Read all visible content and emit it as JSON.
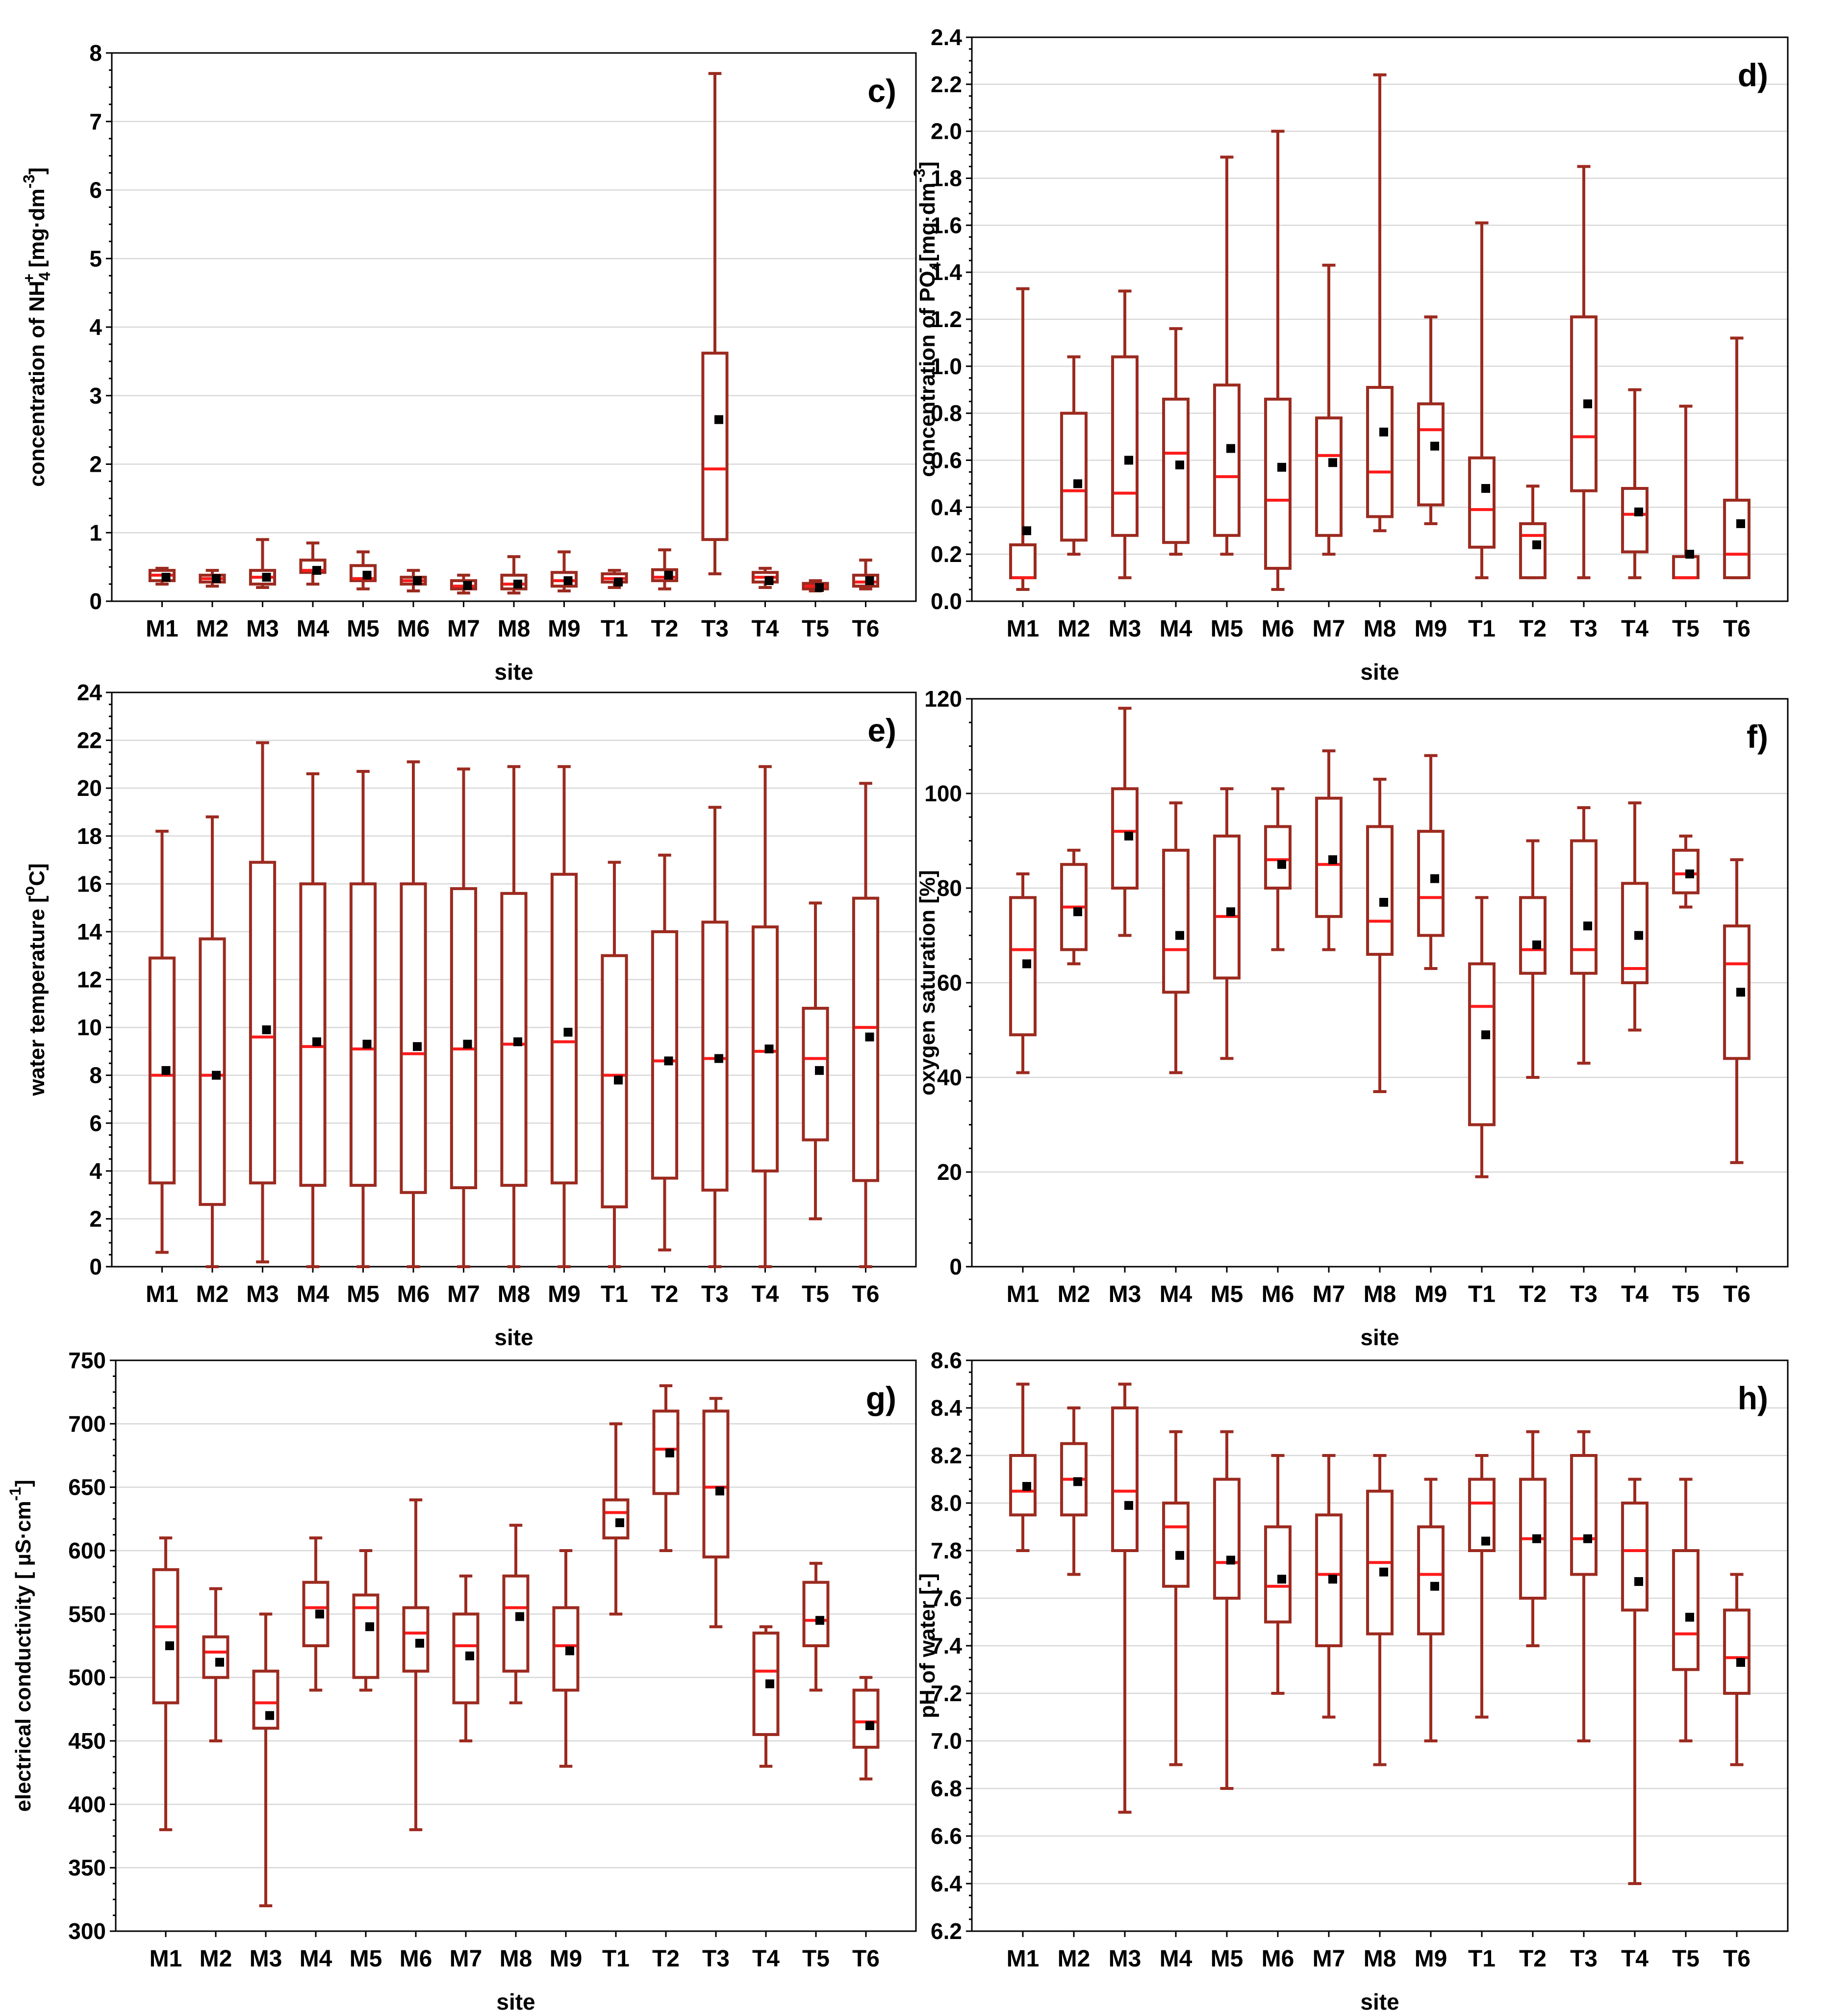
{
  "colors": {
    "box": "#9c2a1f",
    "median": "#ff1a1a",
    "mean": "#000000",
    "grid": "#d8d8d8"
  },
  "chart_data": [
    {
      "type": "boxplot",
      "panel_label": "c)",
      "ylabel_parts": [
        "concentration of NH",
        "4",
        "+",
        " [mg·dm",
        "-3",
        "]"
      ],
      "xlabel": "site",
      "ylim": [
        0,
        8
      ],
      "yticks": [
        0,
        1,
        2,
        3,
        4,
        5,
        6,
        7,
        8
      ],
      "tick_labels": [
        "0",
        "1",
        "2",
        "3",
        "4",
        "5",
        "6",
        "7",
        "8"
      ],
      "grid": true,
      "categories": [
        "M1",
        "M2",
        "M3",
        "M4",
        "M5",
        "M6",
        "M7",
        "M8",
        "M9",
        "T1",
        "T2",
        "T3",
        "T4",
        "T5",
        "T6"
      ],
      "min": [
        0.25,
        0.22,
        0.2,
        0.25,
        0.18,
        0.15,
        0.12,
        0.12,
        0.15,
        0.2,
        0.18,
        0.4,
        0.2,
        0.15,
        0.18
      ],
      "q1": [
        0.3,
        0.28,
        0.25,
        0.42,
        0.3,
        0.25,
        0.18,
        0.18,
        0.22,
        0.28,
        0.3,
        0.9,
        0.28,
        0.18,
        0.22
      ],
      "median": [
        0.38,
        0.33,
        0.35,
        0.45,
        0.33,
        0.3,
        0.22,
        0.25,
        0.3,
        0.33,
        0.35,
        1.93,
        0.35,
        0.22,
        0.28
      ],
      "q3": [
        0.45,
        0.38,
        0.45,
        0.6,
        0.52,
        0.35,
        0.3,
        0.38,
        0.42,
        0.4,
        0.46,
        3.62,
        0.42,
        0.26,
        0.38
      ],
      "max": [
        0.48,
        0.45,
        0.9,
        0.85,
        0.72,
        0.45,
        0.38,
        0.65,
        0.72,
        0.45,
        0.75,
        7.7,
        0.48,
        0.3,
        0.6
      ],
      "mean": [
        0.35,
        0.33,
        0.35,
        0.45,
        0.38,
        0.3,
        0.23,
        0.25,
        0.3,
        0.28,
        0.38,
        2.65,
        0.3,
        0.2,
        0.3
      ]
    },
    {
      "type": "boxplot",
      "panel_label": "d)",
      "ylabel_parts": [
        "concentration of PO",
        "4",
        "-",
        " [mg·dm",
        "-3",
        "]"
      ],
      "xlabel": "site",
      "ylim": [
        0,
        2.4
      ],
      "yticks": [
        0,
        0.2,
        0.4,
        0.6,
        0.8,
        1.0,
        1.2,
        1.4,
        1.6,
        1.8,
        2.0,
        2.2,
        2.4
      ],
      "tick_labels": [
        "0.0",
        "0.2",
        "0.4",
        "0.6",
        "0.8",
        "1.0",
        "1.2",
        "1.4",
        "1.6",
        "1.8",
        "2.0",
        "2.2",
        "2.4"
      ],
      "grid": true,
      "categories": [
        "M1",
        "M2",
        "M3",
        "M4",
        "M5",
        "M6",
        "M7",
        "M8",
        "M9",
        "T1",
        "T2",
        "T3",
        "T4",
        "T5",
        "T6"
      ],
      "min": [
        0.05,
        0.2,
        0.1,
        0.2,
        0.2,
        0.05,
        0.2,
        0.3,
        0.33,
        0.1,
        0.1,
        0.1,
        0.1,
        0.1,
        0.1
      ],
      "q1": [
        0.1,
        0.26,
        0.28,
        0.25,
        0.28,
        0.14,
        0.28,
        0.36,
        0.41,
        0.23,
        0.1,
        0.47,
        0.21,
        0.1,
        0.1
      ],
      "median": [
        0.1,
        0.47,
        0.46,
        0.63,
        0.53,
        0.43,
        0.62,
        0.55,
        0.73,
        0.39,
        0.28,
        0.7,
        0.37,
        0.1,
        0.2
      ],
      "q3": [
        0.24,
        0.8,
        1.04,
        0.86,
        0.92,
        0.86,
        0.78,
        0.91,
        0.84,
        0.61,
        0.33,
        1.21,
        0.48,
        0.19,
        0.43
      ],
      "max": [
        1.33,
        1.04,
        1.32,
        1.16,
        1.89,
        2.0,
        1.43,
        2.24,
        1.21,
        1.61,
        0.49,
        1.85,
        0.9,
        0.83,
        1.12
      ],
      "mean": [
        0.3,
        0.5,
        0.6,
        0.58,
        0.65,
        0.57,
        0.59,
        0.72,
        0.66,
        0.48,
        0.24,
        0.84,
        0.38,
        0.2,
        0.33
      ]
    },
    {
      "type": "boxplot",
      "panel_label": "e)",
      "ylabel_parts": [
        "water temperature [",
        "o",
        "C]"
      ],
      "xlabel": "site",
      "ylim": [
        0,
        24
      ],
      "yticks": [
        0,
        2,
        4,
        6,
        8,
        10,
        12,
        14,
        16,
        18,
        20,
        22,
        24
      ],
      "tick_labels": [
        "0",
        "2",
        "4",
        "6",
        "8",
        "10",
        "12",
        "14",
        "16",
        "18",
        "20",
        "22",
        "24"
      ],
      "grid": true,
      "categories": [
        "M1",
        "M2",
        "M3",
        "M4",
        "M5",
        "M6",
        "M7",
        "M8",
        "M9",
        "T1",
        "T2",
        "T3",
        "T4",
        "T5",
        "T6"
      ],
      "min": [
        0.6,
        0,
        0.2,
        0,
        0,
        0,
        0,
        0,
        0,
        0,
        0.7,
        0,
        0,
        2,
        0
      ],
      "q1": [
        3.5,
        2.6,
        3.5,
        3.4,
        3.4,
        3.1,
        3.3,
        3.4,
        3.5,
        2.5,
        3.7,
        3.2,
        4.0,
        5.3,
        3.6
      ],
      "median": [
        8.0,
        8.0,
        9.6,
        9.2,
        9.1,
        8.9,
        9.1,
        9.3,
        9.4,
        8.0,
        8.6,
        8.7,
        9.0,
        8.7,
        10.0
      ],
      "q3": [
        12.9,
        13.7,
        16.9,
        16.0,
        16.0,
        16.0,
        15.8,
        15.6,
        16.4,
        13.0,
        14.0,
        14.4,
        14.2,
        10.8,
        15.4
      ],
      "max": [
        18.2,
        18.8,
        21.9,
        20.6,
        20.7,
        21.1,
        20.8,
        20.9,
        20.9,
        16.9,
        17.2,
        19.2,
        20.9,
        15.2,
        20.2
      ],
      "mean": [
        8.2,
        8.0,
        9.9,
        9.4,
        9.3,
        9.2,
        9.3,
        9.4,
        9.8,
        7.8,
        8.6,
        8.7,
        9.1,
        8.2,
        9.6
      ]
    },
    {
      "type": "boxplot",
      "panel_label": "f)",
      "ylabel_parts": [
        "oxygen saturation [%]"
      ],
      "xlabel": "site",
      "ylim": [
        0,
        120
      ],
      "yticks": [
        0,
        20,
        40,
        60,
        80,
        100,
        120
      ],
      "tick_labels": [
        "0",
        "20",
        "40",
        "60",
        "80",
        "100",
        "120"
      ],
      "grid": true,
      "categories": [
        "M1",
        "M2",
        "M3",
        "M4",
        "M5",
        "M6",
        "M7",
        "M8",
        "M9",
        "T1",
        "T2",
        "T3",
        "T4",
        "T5",
        "T6"
      ],
      "min": [
        41,
        64,
        70,
        41,
        44,
        67,
        67,
        37,
        63,
        19,
        40,
        43,
        50,
        76,
        22
      ],
      "q1": [
        49,
        67,
        80,
        58,
        61,
        80,
        74,
        66,
        70,
        30,
        62,
        62,
        60,
        79,
        44
      ],
      "median": [
        67,
        76,
        92,
        67,
        74,
        86,
        85,
        73,
        78,
        55,
        67,
        67,
        63,
        83,
        64
      ],
      "q3": [
        78,
        85,
        101,
        88,
        91,
        93,
        99,
        93,
        92,
        64,
        78,
        90,
        81,
        88,
        72
      ],
      "max": [
        83,
        88,
        118,
        98,
        101,
        101,
        109,
        103,
        108,
        78,
        90,
        97,
        98,
        91,
        86
      ],
      "mean": [
        64,
        75,
        91,
        70,
        75,
        85,
        86,
        77,
        82,
        49,
        68,
        72,
        70,
        83,
        58
      ]
    },
    {
      "type": "boxplot",
      "panel_label": "g)",
      "ylabel_parts": [
        "electrical conductivity [ µS·cm",
        "-1",
        "]"
      ],
      "xlabel": "site",
      "ylim": [
        300,
        750
      ],
      "yticks": [
        300,
        350,
        400,
        450,
        500,
        550,
        600,
        650,
        700,
        750
      ],
      "tick_labels": [
        "300",
        "350",
        "400",
        "450",
        "500",
        "550",
        "600",
        "650",
        "700",
        "750"
      ],
      "grid": true,
      "categories": [
        "M1",
        "M2",
        "M3",
        "M4",
        "M5",
        "M6",
        "M7",
        "M8",
        "M9",
        "T1",
        "T2",
        "T3",
        "T4",
        "T5",
        "T6"
      ],
      "min": [
        380,
        450,
        320,
        490,
        490,
        380,
        450,
        480,
        430,
        550,
        600,
        540,
        430,
        490,
        420
      ],
      "q1": [
        480,
        500,
        460,
        525,
        500,
        505,
        480,
        505,
        490,
        610,
        645,
        595,
        455,
        525,
        445
      ],
      "median": [
        540,
        520,
        480,
        555,
        555,
        535,
        525,
        555,
        525,
        630,
        680,
        650,
        505,
        545,
        465
      ],
      "q3": [
        585,
        532,
        505,
        575,
        565,
        555,
        550,
        580,
        555,
        640,
        710,
        710,
        535,
        575,
        490
      ],
      "max": [
        610,
        570,
        550,
        610,
        600,
        640,
        580,
        620,
        600,
        700,
        730,
        720,
        540,
        590,
        500
      ],
      "mean": [
        525,
        512,
        470,
        550,
        540,
        527,
        517,
        548,
        521,
        622,
        677,
        647,
        495,
        545,
        462
      ]
    },
    {
      "type": "boxplot",
      "panel_label": "h)",
      "ylabel_parts": [
        "pH of water [-]"
      ],
      "xlabel": "site",
      "ylim": [
        6.2,
        8.6
      ],
      "yticks": [
        6.2,
        6.4,
        6.6,
        6.8,
        7.0,
        7.2,
        7.4,
        7.6,
        7.8,
        8.0,
        8.2,
        8.4,
        8.6
      ],
      "tick_labels": [
        "6.2",
        "6.4",
        "6.6",
        "6.8",
        "7.0",
        "7.2",
        "7.4",
        "7.6",
        "7.8",
        "8.0",
        "8.2",
        "8.4",
        "8.6"
      ],
      "grid": true,
      "categories": [
        "M1",
        "M2",
        "M3",
        "M4",
        "M5",
        "M6",
        "M7",
        "M8",
        "M9",
        "T1",
        "T2",
        "T3",
        "T4",
        "T5",
        "T6"
      ],
      "min": [
        7.8,
        7.7,
        6.7,
        6.9,
        6.8,
        7.2,
        7.1,
        6.9,
        7.0,
        7.1,
        7.4,
        7.0,
        6.4,
        7.0,
        6.9
      ],
      "q1": [
        7.95,
        7.95,
        7.8,
        7.65,
        7.6,
        7.5,
        7.4,
        7.45,
        7.45,
        7.8,
        7.6,
        7.7,
        7.55,
        7.3,
        7.2
      ],
      "median": [
        8.05,
        8.1,
        8.05,
        7.9,
        7.75,
        7.65,
        7.7,
        7.75,
        7.7,
        8.0,
        7.85,
        7.85,
        7.8,
        7.45,
        7.35
      ],
      "q3": [
        8.2,
        8.25,
        8.4,
        8.0,
        8.1,
        7.9,
        7.95,
        8.05,
        7.9,
        8.1,
        8.1,
        8.2,
        8.0,
        7.8,
        7.55
      ],
      "max": [
        8.5,
        8.4,
        8.5,
        8.3,
        8.3,
        8.2,
        8.2,
        8.2,
        8.1,
        8.2,
        8.3,
        8.3,
        8.1,
        8.1,
        7.7
      ],
      "mean": [
        8.07,
        8.09,
        7.99,
        7.78,
        7.76,
        7.68,
        7.68,
        7.71,
        7.65,
        7.84,
        7.85,
        7.85,
        7.67,
        7.52,
        7.33
      ]
    }
  ]
}
